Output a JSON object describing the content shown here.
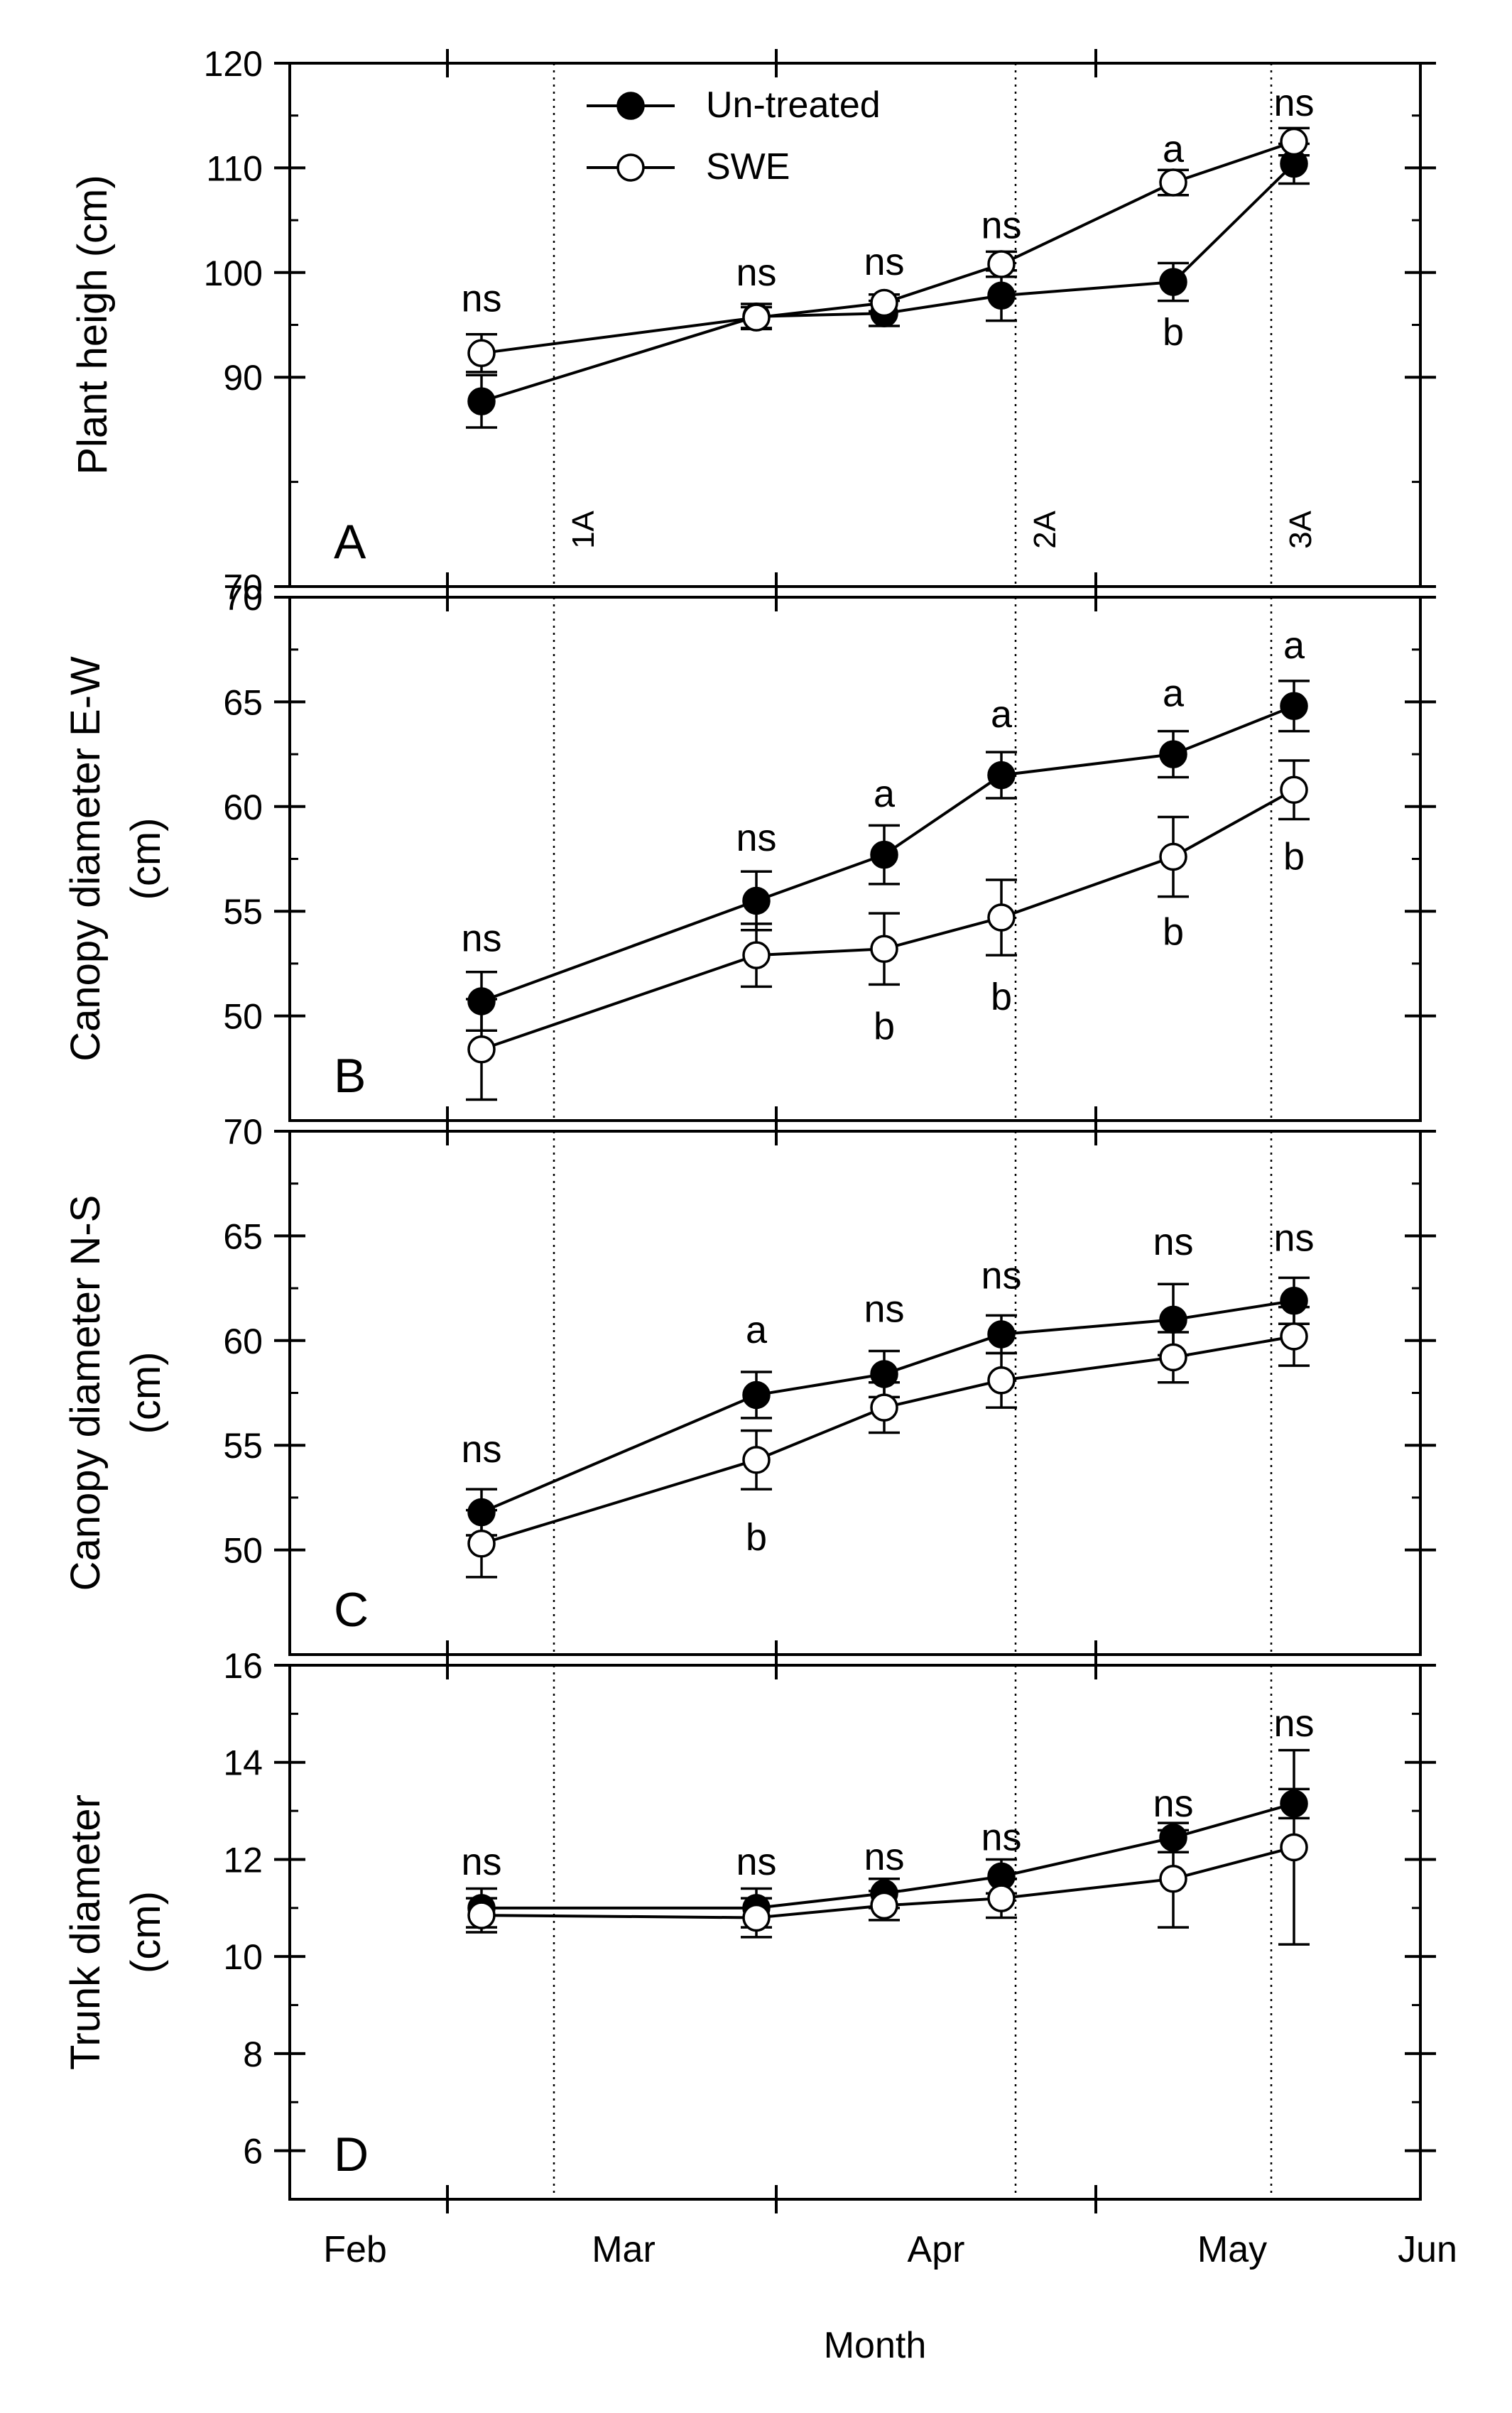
{
  "xlabel": "Month",
  "month_ticks": [
    "Feb",
    "Mar",
    "Apr",
    "May",
    "Jun"
  ],
  "legend": {
    "series1": "Un-treated",
    "series2": "SWE"
  },
  "colors": {
    "untreated_fill": "#000000",
    "swe_fill": "#ffffff",
    "line": "#000000"
  },
  "chart_data": [
    {
      "type": "line",
      "panel_label": "A",
      "ylabel": [
        "Plant heigh (cm)"
      ],
      "ylim": [
        70,
        120
      ],
      "yticks": [
        70,
        90,
        100,
        110,
        120
      ],
      "x": [
        2.53,
        3.5,
        3.87,
        4.3,
        4.73,
        5.13
      ],
      "series": [
        {
          "name": "Un-treated",
          "values": [
            87.7,
            95.8,
            96.1,
            97.8,
            99.1,
            110.4
          ],
          "err": [
            2.5,
            1.2,
            1.2,
            2.4,
            1.8,
            1.9
          ]
        },
        {
          "name": "SWE",
          "values": [
            92.3,
            95.7,
            97.1,
            100.8,
            108.6,
            112.5
          ],
          "err": [
            1.8,
            1.0,
            0.8,
            1.2,
            1.2,
            1.3
          ]
        }
      ],
      "sig_labels": [
        {
          "text": "ns",
          "x": 2.53,
          "y": 97.5
        },
        {
          "text": "ns",
          "x": 3.5,
          "y": 100
        },
        {
          "text": "ns",
          "x": 3.87,
          "y": 101
        },
        {
          "text": "ns",
          "x": 4.3,
          "y": 104.5
        },
        {
          "text": "a",
          "x": 4.73,
          "y": 111.8
        },
        {
          "text": "b",
          "x": 4.73,
          "y": 94.3
        },
        {
          "text": "ns",
          "x": 5.13,
          "y": 116.2
        }
      ],
      "app_lines": [
        {
          "x": 2.85,
          "label": "1A"
        },
        {
          "x": 4.32,
          "label": "2A"
        },
        {
          "x": 5.08,
          "label": "3A"
        }
      ]
    },
    {
      "type": "line",
      "panel_label": "B",
      "ylabel": [
        "Canopy diameter E-W",
        "(cm)"
      ],
      "ylim": [
        45,
        70
      ],
      "yticks": [
        50,
        55,
        60,
        65,
        70
      ],
      "x": [
        2.53,
        3.5,
        3.87,
        4.3,
        4.73,
        5.13
      ],
      "series": [
        {
          "name": "Un-treated",
          "values": [
            50.7,
            55.5,
            57.7,
            61.5,
            62.5,
            64.8
          ],
          "err": [
            1.4,
            1.4,
            1.4,
            1.1,
            1.1,
            1.2
          ]
        },
        {
          "name": "SWE",
          "values": [
            48.4,
            52.9,
            53.2,
            54.7,
            57.6,
            60.8
          ],
          "err": [
            2.4,
            1.5,
            1.7,
            1.8,
            1.9,
            1.4
          ]
        }
      ],
      "sig_labels": [
        {
          "text": "ns",
          "x": 2.53,
          "y": 53.7
        },
        {
          "text": "ns",
          "x": 3.5,
          "y": 58.5
        },
        {
          "text": "a",
          "x": 3.87,
          "y": 60.6
        },
        {
          "text": "b",
          "x": 3.87,
          "y": 49.5
        },
        {
          "text": "a",
          "x": 4.3,
          "y": 64.4
        },
        {
          "text": "b",
          "x": 4.3,
          "y": 50.9
        },
        {
          "text": "a",
          "x": 4.73,
          "y": 65.4
        },
        {
          "text": "b",
          "x": 4.73,
          "y": 54
        },
        {
          "text": "a",
          "x": 5.13,
          "y": 67.7
        },
        {
          "text": "b",
          "x": 5.13,
          "y": 57.6
        }
      ]
    },
    {
      "type": "line",
      "panel_label": "C",
      "ylabel": [
        "Canopy diameter N-S",
        "(cm)"
      ],
      "ylim": [
        45,
        70
      ],
      "yticks": [
        50,
        55,
        60,
        65,
        70
      ],
      "x": [
        2.53,
        3.5,
        3.87,
        4.3,
        4.73,
        5.13
      ],
      "series": [
        {
          "name": "Un-treated",
          "values": [
            51.8,
            57.4,
            58.4,
            60.3,
            61.0,
            61.9
          ],
          "err": [
            1.1,
            1.1,
            1.1,
            0.9,
            1.7,
            1.1
          ]
        },
        {
          "name": "SWE",
          "values": [
            50.3,
            54.3,
            56.8,
            58.1,
            59.2,
            60.2
          ],
          "err": [
            1.6,
            1.4,
            1.2,
            1.3,
            1.2,
            1.4
          ]
        }
      ],
      "sig_labels": [
        {
          "text": "ns",
          "x": 2.53,
          "y": 54.8
        },
        {
          "text": "a",
          "x": 3.5,
          "y": 60.5
        },
        {
          "text": "b",
          "x": 3.5,
          "y": 50.6
        },
        {
          "text": "ns",
          "x": 3.87,
          "y": 61.5
        },
        {
          "text": "ns",
          "x": 4.3,
          "y": 63.1
        },
        {
          "text": "ns",
          "x": 4.73,
          "y": 64.7
        },
        {
          "text": "ns",
          "x": 5.13,
          "y": 64.9
        }
      ]
    },
    {
      "type": "line",
      "panel_label": "D",
      "ylabel": [
        "Trunk diameter",
        "(cm)"
      ],
      "ylim": [
        5,
        16
      ],
      "yticks": [
        6,
        8,
        10,
        12,
        14,
        16
      ],
      "x": [
        2.53,
        3.5,
        3.87,
        4.3,
        4.73,
        5.13
      ],
      "series": [
        {
          "name": "Un-treated",
          "values": [
            11.0,
            11.0,
            11.3,
            11.65,
            12.45,
            13.15
          ],
          "err": [
            0.4,
            0.4,
            0.3,
            0.35,
            0.3,
            0.3
          ]
        },
        {
          "name": "SWE",
          "values": [
            10.85,
            10.8,
            11.05,
            11.2,
            11.6,
            12.25
          ],
          "err": [
            0.35,
            0.4,
            0.3,
            0.4,
            1.0,
            2.0
          ]
        }
      ],
      "sig_labels": [
        {
          "text": "ns",
          "x": 2.53,
          "y": 11.95
        },
        {
          "text": "ns",
          "x": 3.5,
          "y": 11.95
        },
        {
          "text": "ns",
          "x": 3.87,
          "y": 12.05
        },
        {
          "text": "ns",
          "x": 4.3,
          "y": 12.45
        },
        {
          "text": "ns",
          "x": 4.73,
          "y": 13.15
        },
        {
          "text": "ns",
          "x": 5.13,
          "y": 14.8
        }
      ]
    }
  ]
}
